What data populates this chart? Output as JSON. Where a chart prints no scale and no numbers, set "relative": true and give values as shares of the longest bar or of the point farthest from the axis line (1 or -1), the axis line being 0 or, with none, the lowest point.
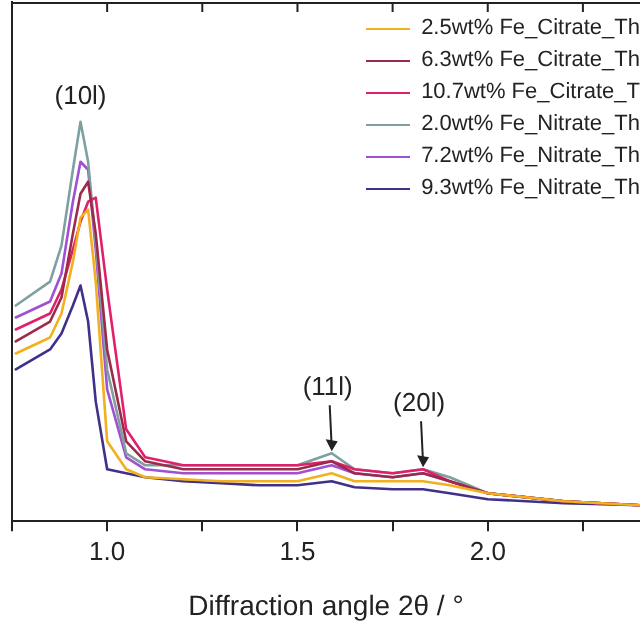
{
  "chart_data": {
    "type": "line",
    "xlabel": "Diffraction angle 2θ / °",
    "relative": true,
    "xlim": [
      0.75,
      2.4
    ],
    "xticks": [
      {
        "value": 0.75,
        "label": null
      },
      {
        "value": 1,
        "label": "1.0"
      },
      {
        "value": 1.25,
        "label": null
      },
      1.5,
      {
        "value": 1.75,
        "label": null
      },
      {
        "value": 2,
        "label": "2.0"
      },
      {
        "value": 2.25,
        "label": null
      }
    ],
    "grid": false,
    "legend": "top right",
    "marker": "none",
    "line_style": "solid",
    "x": [
      0.76,
      0.85,
      0.88,
      0.91,
      0.93,
      0.95,
      0.97,
      1.0,
      1.05,
      1.1,
      1.2,
      1.3,
      1.4,
      1.5,
      1.59,
      1.65,
      1.75,
      1.83,
      1.9,
      2.0,
      2.2,
      2.4
    ],
    "series": [
      {
        "name": "2.5wt% Fe_Citrate_Th",
        "color": "#f2b01e",
        "values": [
          0.42,
          0.46,
          0.52,
          0.65,
          0.76,
          0.78,
          0.6,
          0.2,
          0.13,
          0.11,
          0.105,
          0.1,
          0.1,
          0.1,
          0.12,
          0.1,
          0.1,
          0.1,
          0.09,
          0.07,
          0.05,
          0.04
        ]
      },
      {
        "name": "6.3wt% Fe_Citrate_Th",
        "color": "#9c2a4a",
        "values": [
          0.45,
          0.5,
          0.56,
          0.72,
          0.82,
          0.85,
          0.72,
          0.43,
          0.2,
          0.15,
          0.13,
          0.13,
          0.13,
          0.13,
          0.15,
          0.12,
          0.11,
          0.12,
          0.1,
          0.07,
          0.05,
          0.04
        ]
      },
      {
        "name": "10.7wt% Fe_Citrate_T",
        "color": "#e0206a",
        "values": [
          0.48,
          0.52,
          0.58,
          0.68,
          0.75,
          0.8,
          0.81,
          0.58,
          0.23,
          0.16,
          0.14,
          0.14,
          0.14,
          0.14,
          0.15,
          0.13,
          0.12,
          0.13,
          0.1,
          0.07,
          0.05,
          0.04
        ]
      },
      {
        "name": "2.0wt% Fe_Nitrate_Th",
        "color": "#7fa0a0",
        "values": [
          0.54,
          0.6,
          0.69,
          0.88,
          1.0,
          0.9,
          0.7,
          0.38,
          0.17,
          0.14,
          0.14,
          0.14,
          0.14,
          0.14,
          0.17,
          0.13,
          0.12,
          0.13,
          0.11,
          0.07,
          0.05,
          0.04
        ]
      },
      {
        "name": "7.2wt% Fe_Nitrate_Th",
        "color": "#a050d0",
        "values": [
          0.51,
          0.55,
          0.62,
          0.8,
          0.9,
          0.88,
          0.68,
          0.33,
          0.16,
          0.13,
          0.12,
          0.12,
          0.12,
          0.12,
          0.14,
          0.12,
          0.11,
          0.12,
          0.1,
          0.07,
          0.05,
          0.04
        ]
      },
      {
        "name": "9.3wt% Fe_Nitrate_Th",
        "color": "#40308a",
        "values": [
          0.38,
          0.43,
          0.47,
          0.54,
          0.59,
          0.5,
          0.3,
          0.13,
          0.12,
          0.11,
          0.1,
          0.095,
          0.09,
          0.09,
          0.1,
          0.085,
          0.08,
          0.08,
          0.07,
          0.055,
          0.045,
          0.04
        ]
      }
    ],
    "annotations": [
      {
        "text": "(10l)",
        "x": 0.93,
        "y": 1.0
      },
      {
        "text": "(11l)",
        "x": 1.59,
        "y": 0.17
      },
      {
        "text": "(20l)",
        "x": 1.83,
        "y": 0.13
      }
    ]
  }
}
